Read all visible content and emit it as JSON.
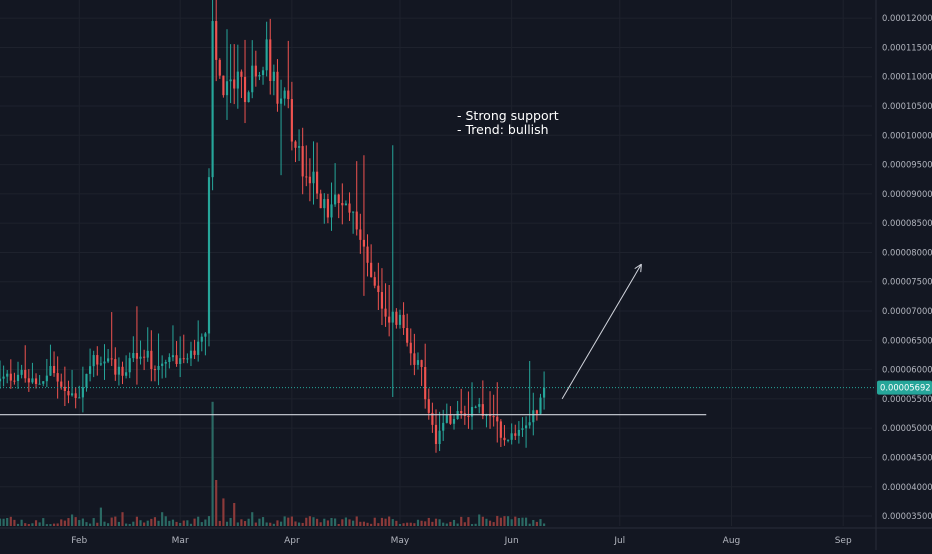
{
  "colors": {
    "background": "#131722",
    "grid": "#1e222d",
    "up": "#26a69a",
    "down": "#ef5350",
    "vol_up": "#2b6a64",
    "vol_down": "#8c3a3a",
    "axis_text": "#b2b5be",
    "annotation": "#ffffff",
    "price_line": "#26a69a",
    "support_line": "#d1d4dc",
    "badge_bg": "#26a69a",
    "badge_text": "#ffffff"
  },
  "annotation": {
    "line1": "- Strong support",
    "line2": "- Trend: bullish"
  },
  "last_price_label": "0.00005692",
  "chart_data": {
    "type": "candlestick",
    "title": "",
    "xlabel": "",
    "ylabel": "",
    "ylim": [
      3.33e-05,
      0.0001231
    ],
    "grid": true,
    "y_ticks": [
      "0.00012000",
      "0.00011500",
      "0.00011000",
      "0.00010500",
      "0.00010000",
      "0.00009500",
      "0.00009000",
      "0.00008500",
      "0.00008000",
      "0.00007500",
      "0.00007000",
      "0.00006500",
      "0.00006000",
      "0.00005500",
      "0.00005000",
      "0.00004500",
      "0.00004000",
      "0.00003500"
    ],
    "y_tick_values": [
      0.00012,
      0.000115,
      0.00011,
      0.000105,
      0.0001,
      9.5e-05,
      9e-05,
      8.5e-05,
      8e-05,
      7.5e-05,
      7e-05,
      6.5e-05,
      6e-05,
      5.5e-05,
      5e-05,
      4.5e-05,
      4e-05,
      3.5e-05
    ],
    "x_labels": [
      "Feb",
      "Mar",
      "Apr",
      "May",
      "Jun",
      "Jul",
      "Aug",
      "Sep"
    ],
    "x_label_days": [
      22,
      50,
      81,
      111,
      142,
      172,
      203,
      234
    ],
    "x_range_days": [
      0,
      242
    ],
    "last_price": 5.692e-05,
    "support_level": 5.23e-05,
    "support_range_days": [
      0,
      196
    ],
    "arrow": {
      "from": [
        156,
        5.5e-05
      ],
      "to": [
        178,
        7.8e-05
      ]
    },
    "price_keypoints": [
      [
        0,
        5.8
      ],
      [
        5,
        5.95
      ],
      [
        10,
        5.7
      ],
      [
        14,
        6.05
      ],
      [
        18,
        5.55
      ],
      [
        22,
        5.6
      ],
      [
        26,
        6.2
      ],
      [
        30,
        6.1
      ],
      [
        34,
        5.95
      ],
      [
        38,
        6.3
      ],
      [
        42,
        6.15
      ],
      [
        46,
        6.1
      ],
      [
        50,
        6.25
      ],
      [
        54,
        6.35
      ],
      [
        57,
        6.6
      ],
      [
        59,
        11.7
      ],
      [
        62,
        10.5
      ],
      [
        65,
        11.0
      ],
      [
        68,
        10.6
      ],
      [
        71,
        11.2
      ],
      [
        74,
        11.4
      ],
      [
        77,
        10.8
      ],
      [
        80,
        10.4
      ],
      [
        82,
        9.8
      ],
      [
        85,
        9.3
      ],
      [
        88,
        9.1
      ],
      [
        91,
        8.65
      ],
      [
        93,
        8.8
      ],
      [
        96,
        8.8
      ],
      [
        99,
        8.6
      ],
      [
        102,
        7.9
      ],
      [
        105,
        7.3
      ],
      [
        108,
        6.9
      ],
      [
        111,
        6.8
      ],
      [
        114,
        6.4
      ],
      [
        117,
        5.9
      ],
      [
        119,
        5.3
      ],
      [
        121,
        4.7
      ],
      [
        123,
        5.1
      ],
      [
        126,
        5.15
      ],
      [
        129,
        5.25
      ],
      [
        132,
        5.4
      ],
      [
        135,
        5.2
      ],
      [
        138,
        5.05
      ],
      [
        140,
        4.85
      ],
      [
        143,
        4.95
      ],
      [
        146,
        5.15
      ],
      [
        149,
        5.35
      ],
      [
        151,
        5.69
      ]
    ],
    "volume_spikes": [
      [
        59,
        27
      ],
      [
        60,
        10
      ],
      [
        62,
        6
      ],
      [
        28,
        4
      ],
      [
        65,
        5
      ],
      [
        45,
        3
      ],
      [
        70,
        3
      ],
      [
        34,
        3
      ],
      [
        20,
        2.5
      ],
      [
        133,
        2.5
      ]
    ]
  }
}
